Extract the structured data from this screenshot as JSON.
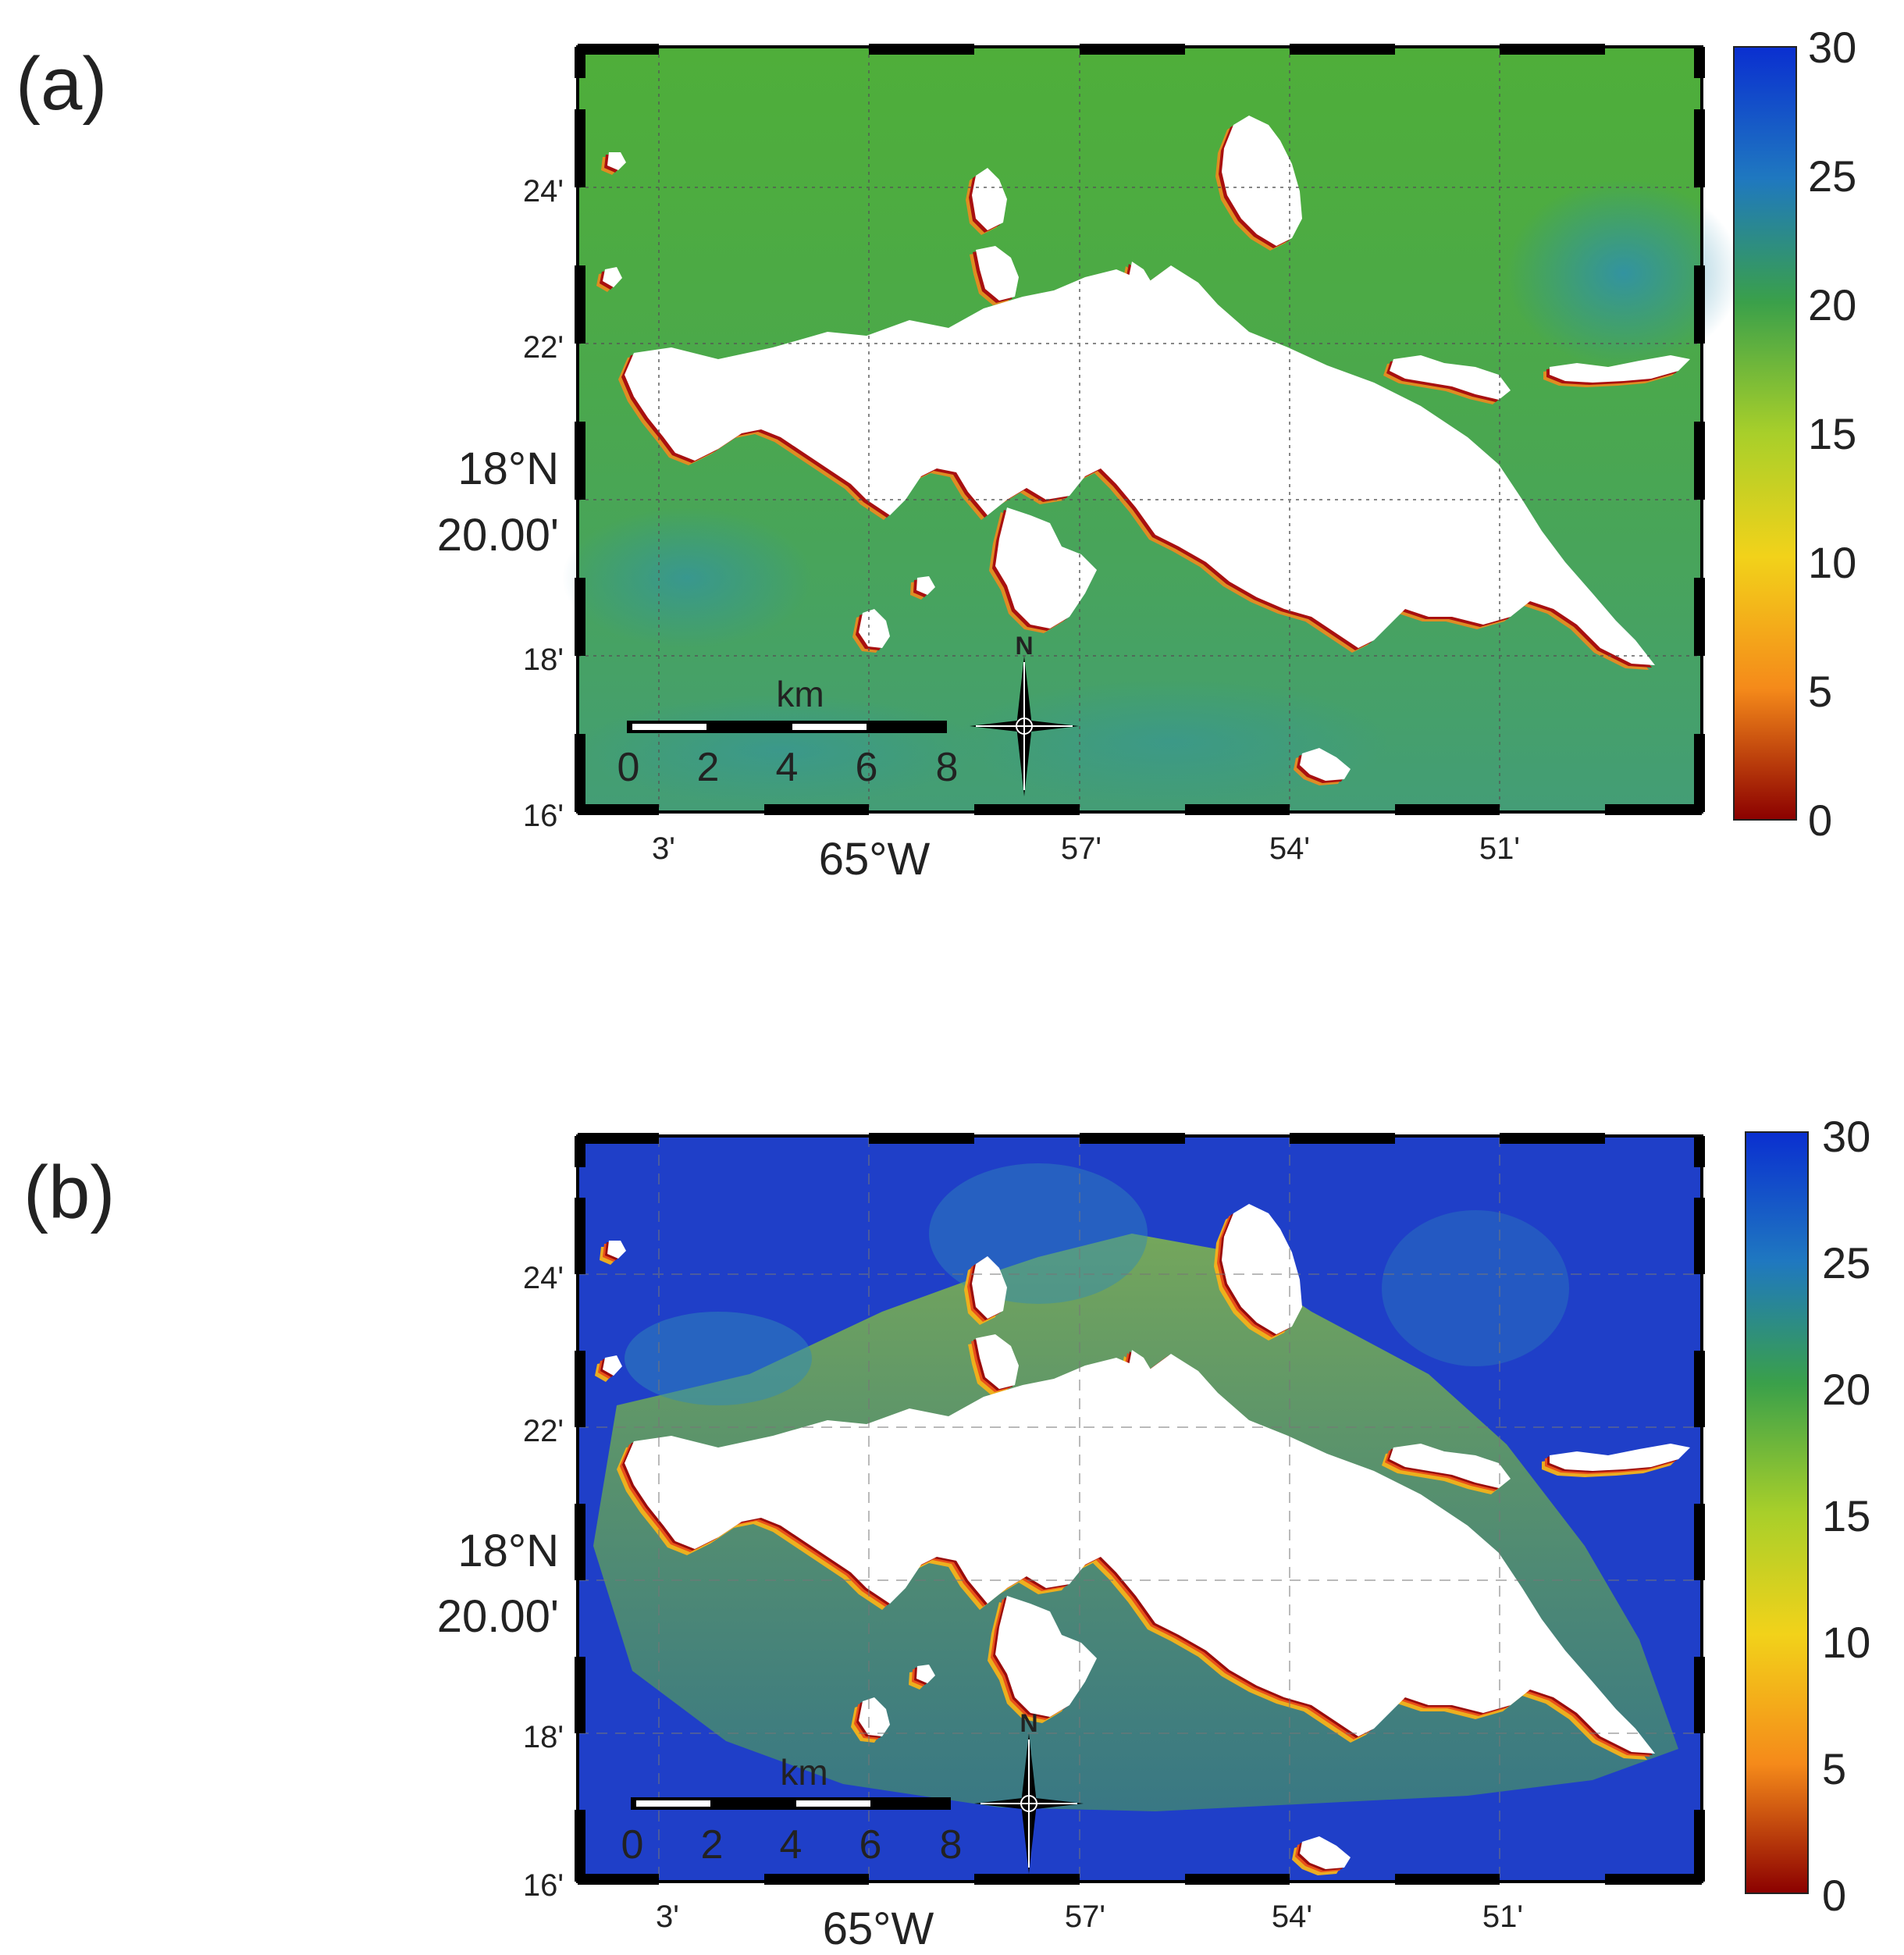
{
  "panels": [
    {
      "id": "a",
      "label": "(a)",
      "lat_ticks": [
        "24'",
        "22'",
        "18'",
        "16'"
      ],
      "lat_center": [
        "18°N",
        "20.00'"
      ],
      "lon_ticks": [
        "3'",
        "57'",
        "54'",
        "51'"
      ],
      "lon_center": "65°W",
      "colorbar_ticks": [
        "30",
        "25",
        "20",
        "15",
        "10",
        "5",
        "0"
      ],
      "scalebar_unit": "km",
      "scalebar_ticks": [
        "0",
        "2",
        "4",
        "6",
        "8"
      ],
      "compass_label": "N",
      "water_color": "#4fae3a"
    },
    {
      "id": "b",
      "label": "(b)",
      "lat_ticks": [
        "24'",
        "22'",
        "18'",
        "16'"
      ],
      "lat_center": [
        "18°N",
        "20.00'"
      ],
      "lon_ticks": [
        "3'",
        "57'",
        "54'",
        "51'"
      ],
      "lon_center": "65°W",
      "colorbar_ticks": [
        "30",
        "25",
        "20",
        "15",
        "10",
        "5",
        "0"
      ],
      "scalebar_unit": "km",
      "scalebar_ticks": [
        "0",
        "2",
        "4",
        "6",
        "8"
      ],
      "compass_label": "N",
      "water_color": "#1f3fc8"
    }
  ],
  "colormap": [
    "#0a2fd0",
    "#1f78c0",
    "#3aa04a",
    "#a8cf2a",
    "#f2d21a",
    "#f58a1a",
    "#8b0000"
  ]
}
